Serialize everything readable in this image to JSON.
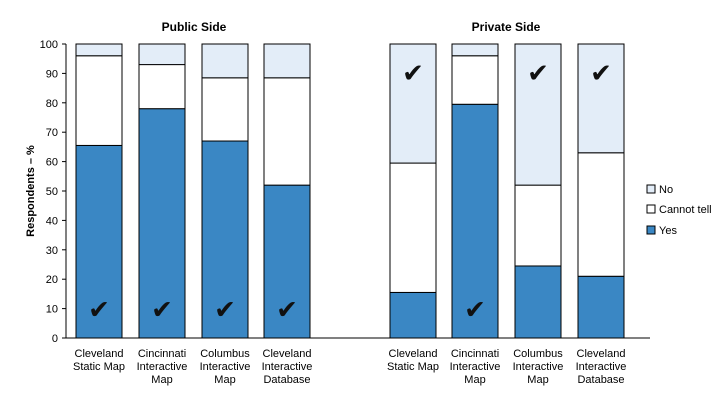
{
  "chart_data": {
    "type": "bar",
    "stacked": true,
    "ylabel": "Respondents – %",
    "ylim": [
      0,
      100
    ],
    "yticks": [
      0,
      10,
      20,
      30,
      40,
      50,
      60,
      70,
      80,
      90,
      100
    ],
    "grid": false,
    "legend": {
      "placement": "right",
      "order": [
        "No",
        "Cannot tell",
        "Yes"
      ]
    },
    "colors": {
      "Yes": "#3a87c4",
      "Cannot tell": "#ffffff",
      "No": "#e3edf8"
    },
    "check_mark": "✔",
    "panels": [
      {
        "title": "Public Side",
        "categories": [
          [
            "Cleveland",
            "Static Map"
          ],
          [
            "Cincinnati",
            "Interactive",
            "Map"
          ],
          [
            "Columbus",
            "Interactive",
            "Map"
          ],
          [
            "Cleveland",
            "Interactive",
            "Database"
          ]
        ],
        "series": [
          {
            "name": "Yes",
            "values": [
              65.5,
              78,
              67,
              52
            ]
          },
          {
            "name": "Cannot tell",
            "values": [
              30.5,
              15,
              21.5,
              36.5
            ]
          },
          {
            "name": "No",
            "values": [
              4,
              7,
              11.5,
              11.5
            ]
          }
        ],
        "checked_series": [
          "Yes",
          "Yes",
          "Yes",
          "Yes"
        ]
      },
      {
        "title": "Private Side",
        "categories": [
          [
            "Cleveland",
            "Static Map"
          ],
          [
            "Cincinnati",
            "Interactive",
            "Map"
          ],
          [
            "Columbus",
            "Interactive",
            "Map"
          ],
          [
            "Cleveland",
            "Interactive",
            "Database"
          ]
        ],
        "series": [
          {
            "name": "Yes",
            "values": [
              15.5,
              79.5,
              24.5,
              21
            ]
          },
          {
            "name": "Cannot tell",
            "values": [
              44,
              16.5,
              27.5,
              42
            ]
          },
          {
            "name": "No",
            "values": [
              40.5,
              4,
              48,
              37
            ]
          }
        ],
        "checked_series": [
          "No",
          "Yes",
          "No",
          "No"
        ]
      }
    ]
  }
}
